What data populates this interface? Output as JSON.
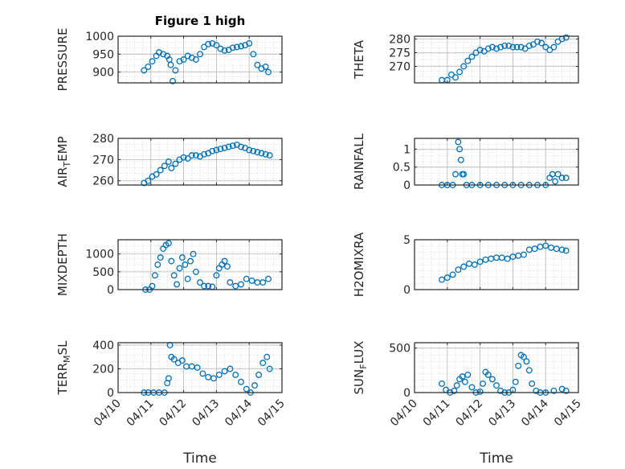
{
  "colors": {
    "series": "#0072BD",
    "axis": "#262626",
    "grid": "#b8b8b8"
  },
  "chart_data": [
    {
      "id": "pressure",
      "type": "scatter",
      "title": "Figure 1 high",
      "ylabel": "PRESSURE",
      "ylabel_sub": "",
      "ylabel_tail": "",
      "ylim": [
        870,
        1000
      ],
      "yticks": [
        900,
        950,
        1000
      ],
      "xlim": [
        "04/10",
        "04/15"
      ],
      "xticks": [
        "04/10",
        "04/11",
        "04/12",
        "04/13",
        "04/14",
        "04/15"
      ],
      "show_x_ticklabels": false,
      "xlabel": "",
      "grid": true,
      "x": [
        "04/10 19:00",
        "04/10 22:00",
        "04/11 01:00",
        "04/11 04:00",
        "04/11 06:00",
        "04/11 09:00",
        "04/11 12:00",
        "04/11 13:30",
        "04/11 14:30",
        "04/11 16:00",
        "04/11 18:00",
        "04/11 21:00",
        "04/12 00:00",
        "04/12 03:00",
        "04/12 06:00",
        "04/12 09:00",
        "04/12 12:00",
        "04/12 15:00",
        "04/12 18:00",
        "04/12 21:00",
        "04/13 00:00",
        "04/13 03:00",
        "04/13 06:00",
        "04/13 09:00",
        "04/13 12:00",
        "04/13 15:00",
        "04/13 18:00",
        "04/13 21:00",
        "04/14 00:00",
        "04/14 03:00",
        "04/14 06:00",
        "04/14 09:00",
        "04/14 12:00",
        "04/14 14:00"
      ],
      "y": [
        905,
        915,
        930,
        945,
        955,
        950,
        945,
        935,
        920,
        875,
        905,
        930,
        935,
        945,
        940,
        935,
        950,
        970,
        978,
        980,
        975,
        965,
        960,
        962,
        968,
        970,
        972,
        975,
        980,
        950,
        920,
        910,
        915,
        900
      ]
    },
    {
      "id": "theta",
      "type": "scatter",
      "title": "",
      "ylabel": "THETA",
      "ylabel_sub": "",
      "ylabel_tail": "",
      "ylim": [
        264,
        281
      ],
      "yticks": [
        270,
        275,
        280
      ],
      "xlim": [
        "04/10",
        "04/15"
      ],
      "xticks": [
        "04/10",
        "04/11",
        "04/12",
        "04/13",
        "04/14",
        "04/15"
      ],
      "show_x_ticklabels": false,
      "xlabel": "",
      "grid": true,
      "x": [
        "04/10 20:00",
        "04/11 00:00",
        "04/11 03:00",
        "04/11 06:00",
        "04/11 09:00",
        "04/11 12:00",
        "04/11 15:00",
        "04/11 18:00",
        "04/11 21:00",
        "04/12 00:00",
        "04/12 03:00",
        "04/12 06:00",
        "04/12 09:00",
        "04/12 12:00",
        "04/12 15:00",
        "04/12 18:00",
        "04/12 21:00",
        "04/13 00:00",
        "04/13 03:00",
        "04/13 06:00",
        "04/13 09:00",
        "04/13 12:00",
        "04/13 15:00",
        "04/13 18:00",
        "04/13 21:00",
        "04/14 00:00",
        "04/14 03:00",
        "04/14 06:00",
        "04/14 09:00",
        "04/14 12:00",
        "04/14 15:00"
      ],
      "y": [
        265,
        265,
        267,
        266,
        268,
        270,
        272,
        273.5,
        275,
        276,
        275.5,
        276.5,
        277,
        276.5,
        277,
        277.5,
        277.5,
        277,
        277,
        277,
        276.5,
        277.5,
        278,
        279,
        278.5,
        277,
        276,
        277,
        279,
        280,
        280.5
      ]
    },
    {
      "id": "air_temp",
      "type": "scatter",
      "title": "",
      "ylabel": "AIR",
      "ylabel_sub": "T",
      "ylabel_tail": "EMP",
      "ylim": [
        258,
        280
      ],
      "yticks": [
        260,
        270,
        280
      ],
      "xlim": [
        "04/10",
        "04/15"
      ],
      "xticks": [
        "04/10",
        "04/11",
        "04/12",
        "04/13",
        "04/14",
        "04/15"
      ],
      "show_x_ticklabels": false,
      "xlabel": "",
      "grid": true,
      "x": [
        "04/10 19:00",
        "04/10 22:00",
        "04/11 01:00",
        "04/11 04:00",
        "04/11 07:00",
        "04/11 10:00",
        "04/11 13:00",
        "04/11 15:00",
        "04/11 18:00",
        "04/11 21:00",
        "04/12 00:00",
        "04/12 03:00",
        "04/12 06:00",
        "04/12 09:00",
        "04/12 12:00",
        "04/12 15:00",
        "04/12 18:00",
        "04/12 21:00",
        "04/13 00:00",
        "04/13 03:00",
        "04/13 06:00",
        "04/13 09:00",
        "04/13 12:00",
        "04/13 15:00",
        "04/13 18:00",
        "04/13 21:00",
        "04/14 00:00",
        "04/14 03:00",
        "04/14 06:00",
        "04/14 09:00",
        "04/14 12:00",
        "04/14 15:00"
      ],
      "y": [
        259,
        260,
        262,
        263,
        265,
        267,
        269,
        266,
        268,
        270,
        271,
        270.5,
        272,
        272,
        271.5,
        272.5,
        273,
        274,
        274.5,
        275,
        275.5,
        276,
        276.5,
        277,
        276,
        275.5,
        274.5,
        274,
        273.5,
        273,
        272.5,
        272
      ]
    },
    {
      "id": "rainfall",
      "type": "scatter",
      "title": "",
      "ylabel": "RAINFALL",
      "ylabel_sub": "",
      "ylabel_tail": "",
      "ylim": [
        0,
        1.3
      ],
      "yticks": [
        0,
        0.5,
        1
      ],
      "xlim": [
        "04/10",
        "04/15"
      ],
      "xticks": [
        "04/10",
        "04/11",
        "04/12",
        "04/13",
        "04/14",
        "04/15"
      ],
      "show_x_ticklabels": false,
      "xlabel": "",
      "grid": true,
      "x": [
        "04/10 20:00",
        "04/11 00:00",
        "04/11 04:00",
        "04/11 06:00",
        "04/11 08:00",
        "04/11 09:00",
        "04/11 10:00",
        "04/11 11:00",
        "04/11 12:00",
        "04/11 14:00",
        "04/11 18:00",
        "04/12 00:00",
        "04/12 06:00",
        "04/12 12:00",
        "04/12 18:00",
        "04/13 00:00",
        "04/13 06:00",
        "04/13 12:00",
        "04/13 18:00",
        "04/14 00:00",
        "04/14 03:00",
        "04/14 05:00",
        "04/14 07:00",
        "04/14 09:00",
        "04/14 12:00",
        "04/14 15:00"
      ],
      "y": [
        0,
        0,
        0,
        0.3,
        1.2,
        1.0,
        0.7,
        0.3,
        0.3,
        0,
        0,
        0,
        0,
        0,
        0,
        0,
        0,
        0,
        0,
        0,
        0.2,
        0.3,
        0.1,
        0.3,
        0.2,
        0.2
      ]
    },
    {
      "id": "mixdepth",
      "type": "scatter",
      "title": "",
      "ylabel": "MIXDEPTH",
      "ylabel_sub": "",
      "ylabel_tail": "",
      "ylim": [
        0,
        1400
      ],
      "yticks": [
        0,
        500,
        1000
      ],
      "xlim": [
        "04/10",
        "04/15"
      ],
      "xticks": [
        "04/10",
        "04/11",
        "04/12",
        "04/13",
        "04/14",
        "04/15"
      ],
      "show_x_ticklabels": false,
      "xlabel": "",
      "grid": true,
      "x": [
        "04/10 20:00",
        "04/10 23:00",
        "04/11 01:00",
        "04/11 03:00",
        "04/11 05:00",
        "04/11 07:00",
        "04/11 09:00",
        "04/11 11:00",
        "04/11 13:00",
        "04/11 15:00",
        "04/11 17:00",
        "04/11 19:00",
        "04/11 21:00",
        "04/11 23:00",
        "04/12 01:00",
        "04/12 03:00",
        "04/12 05:00",
        "04/12 07:00",
        "04/12 09:00",
        "04/12 12:00",
        "04/12 15:00",
        "04/12 18:00",
        "04/12 21:00",
        "04/13 00:00",
        "04/13 02:00",
        "04/13 04:00",
        "04/13 06:00",
        "04/13 08:00",
        "04/13 10:00",
        "04/13 14:00",
        "04/13 18:00",
        "04/13 22:00",
        "04/14 02:00",
        "04/14 06:00",
        "04/14 10:00",
        "04/14 14:00"
      ],
      "y": [
        0,
        0,
        100,
        400,
        700,
        900,
        1150,
        1250,
        1300,
        800,
        400,
        150,
        600,
        900,
        700,
        300,
        800,
        1000,
        500,
        200,
        100,
        100,
        80,
        400,
        600,
        700,
        800,
        650,
        200,
        100,
        150,
        300,
        250,
        200,
        200,
        300
      ]
    },
    {
      "id": "h2omixra",
      "type": "scatter",
      "title": "",
      "ylabel": "H2OMIXRA",
      "ylabel_sub": "",
      "ylabel_tail": "",
      "ylim": [
        0,
        5
      ],
      "yticks": [
        0,
        5
      ],
      "xlim": [
        "04/10",
        "04/15"
      ],
      "xticks": [
        "04/10",
        "04/11",
        "04/12",
        "04/13",
        "04/14",
        "04/15"
      ],
      "show_x_ticklabels": false,
      "xlabel": "",
      "grid": true,
      "x": [
        "04/10 20:00",
        "04/11 00:00",
        "04/11 04:00",
        "04/11 08:00",
        "04/11 12:00",
        "04/11 16:00",
        "04/11 20:00",
        "04/12 00:00",
        "04/12 04:00",
        "04/12 08:00",
        "04/12 12:00",
        "04/12 16:00",
        "04/12 20:00",
        "04/13 00:00",
        "04/13 04:00",
        "04/13 08:00",
        "04/13 12:00",
        "04/13 16:00",
        "04/13 20:00",
        "04/14 00:00",
        "04/14 04:00",
        "04/14 08:00",
        "04/14 12:00",
        "04/14 15:00"
      ],
      "y": [
        1,
        1.2,
        1.5,
        2,
        2.3,
        2.6,
        2.5,
        2.8,
        3,
        3.1,
        3.2,
        3.2,
        3.1,
        3.3,
        3.4,
        3.5,
        4,
        4.1,
        4.3,
        4.4,
        4.2,
        4.1,
        4,
        3.9
      ]
    },
    {
      "id": "terr_msl",
      "type": "scatter",
      "title": "",
      "ylabel": "TERR",
      "ylabel_sub": "M",
      "ylabel_tail": "SL",
      "ylim": [
        0,
        420
      ],
      "yticks": [
        0,
        200,
        400
      ],
      "xlim": [
        "04/10",
        "04/15"
      ],
      "xticks": [
        "04/10",
        "04/11",
        "04/12",
        "04/13",
        "04/14",
        "04/15"
      ],
      "show_x_ticklabels": true,
      "xlabel": "Time",
      "grid": true,
      "x": [
        "04/10 19:00",
        "04/10 22:00",
        "04/11 02:00",
        "04/11 06:00",
        "04/11 10:00",
        "04/11 12:00",
        "04/11 13:00",
        "04/11 14:00",
        "04/11 15:00",
        "04/11 17:00",
        "04/11 20:00",
        "04/11 23:00",
        "04/12 02:00",
        "04/12 06:00",
        "04/12 10:00",
        "04/12 14:00",
        "04/12 18:00",
        "04/12 22:00",
        "04/13 02:00",
        "04/13 06:00",
        "04/13 10:00",
        "04/13 14:00",
        "04/13 18:00",
        "04/13 22:00",
        "04/14 01:00",
        "04/14 04:00",
        "04/14 07:00",
        "04/14 10:00",
        "04/14 13:00",
        "04/14 15:00"
      ],
      "y": [
        0,
        0,
        0,
        0,
        0,
        80,
        120,
        400,
        300,
        280,
        250,
        270,
        220,
        220,
        210,
        160,
        130,
        120,
        150,
        180,
        200,
        150,
        90,
        30,
        0,
        60,
        150,
        250,
        300,
        200
      ]
    },
    {
      "id": "sun_flux",
      "type": "scatter",
      "title": "",
      "ylabel": "SUN",
      "ylabel_sub": "F",
      "ylabel_tail": "LUX",
      "ylim": [
        0,
        560
      ],
      "yticks": [
        0,
        500
      ],
      "xlim": [
        "04/10",
        "04/15"
      ],
      "xticks": [
        "04/10",
        "04/11",
        "04/12",
        "04/13",
        "04/14",
        "04/15"
      ],
      "show_x_ticklabels": true,
      "xlabel": "Time",
      "grid": true,
      "x": [
        "04/10 20:00",
        "04/10 23:00",
        "04/11 02:00",
        "04/11 05:00",
        "04/11 07:00",
        "04/11 09:00",
        "04/11 11:00",
        "04/11 13:00",
        "04/11 15:00",
        "04/11 18:00",
        "04/11 21:00",
        "04/12 00:00",
        "04/12 02:00",
        "04/12 04:00",
        "04/12 06:00",
        "04/12 09:00",
        "04/12 12:00",
        "04/12 15:00",
        "04/12 18:00",
        "04/12 21:00",
        "04/13 00:00",
        "04/13 02:00",
        "04/13 04:00",
        "04/13 06:00",
        "04/13 08:00",
        "04/13 10:00",
        "04/13 12:00",
        "04/13 14:00",
        "04/13 17:00",
        "04/13 20:00",
        "04/14 00:00",
        "04/14 06:00",
        "04/14 12:00",
        "04/14 15:00"
      ],
      "y": [
        100,
        30,
        0,
        20,
        80,
        150,
        180,
        120,
        200,
        60,
        0,
        10,
        100,
        230,
        200,
        150,
        80,
        20,
        0,
        0,
        30,
        120,
        300,
        420,
        400,
        350,
        250,
        100,
        20,
        0,
        0,
        20,
        40,
        20
      ]
    }
  ]
}
